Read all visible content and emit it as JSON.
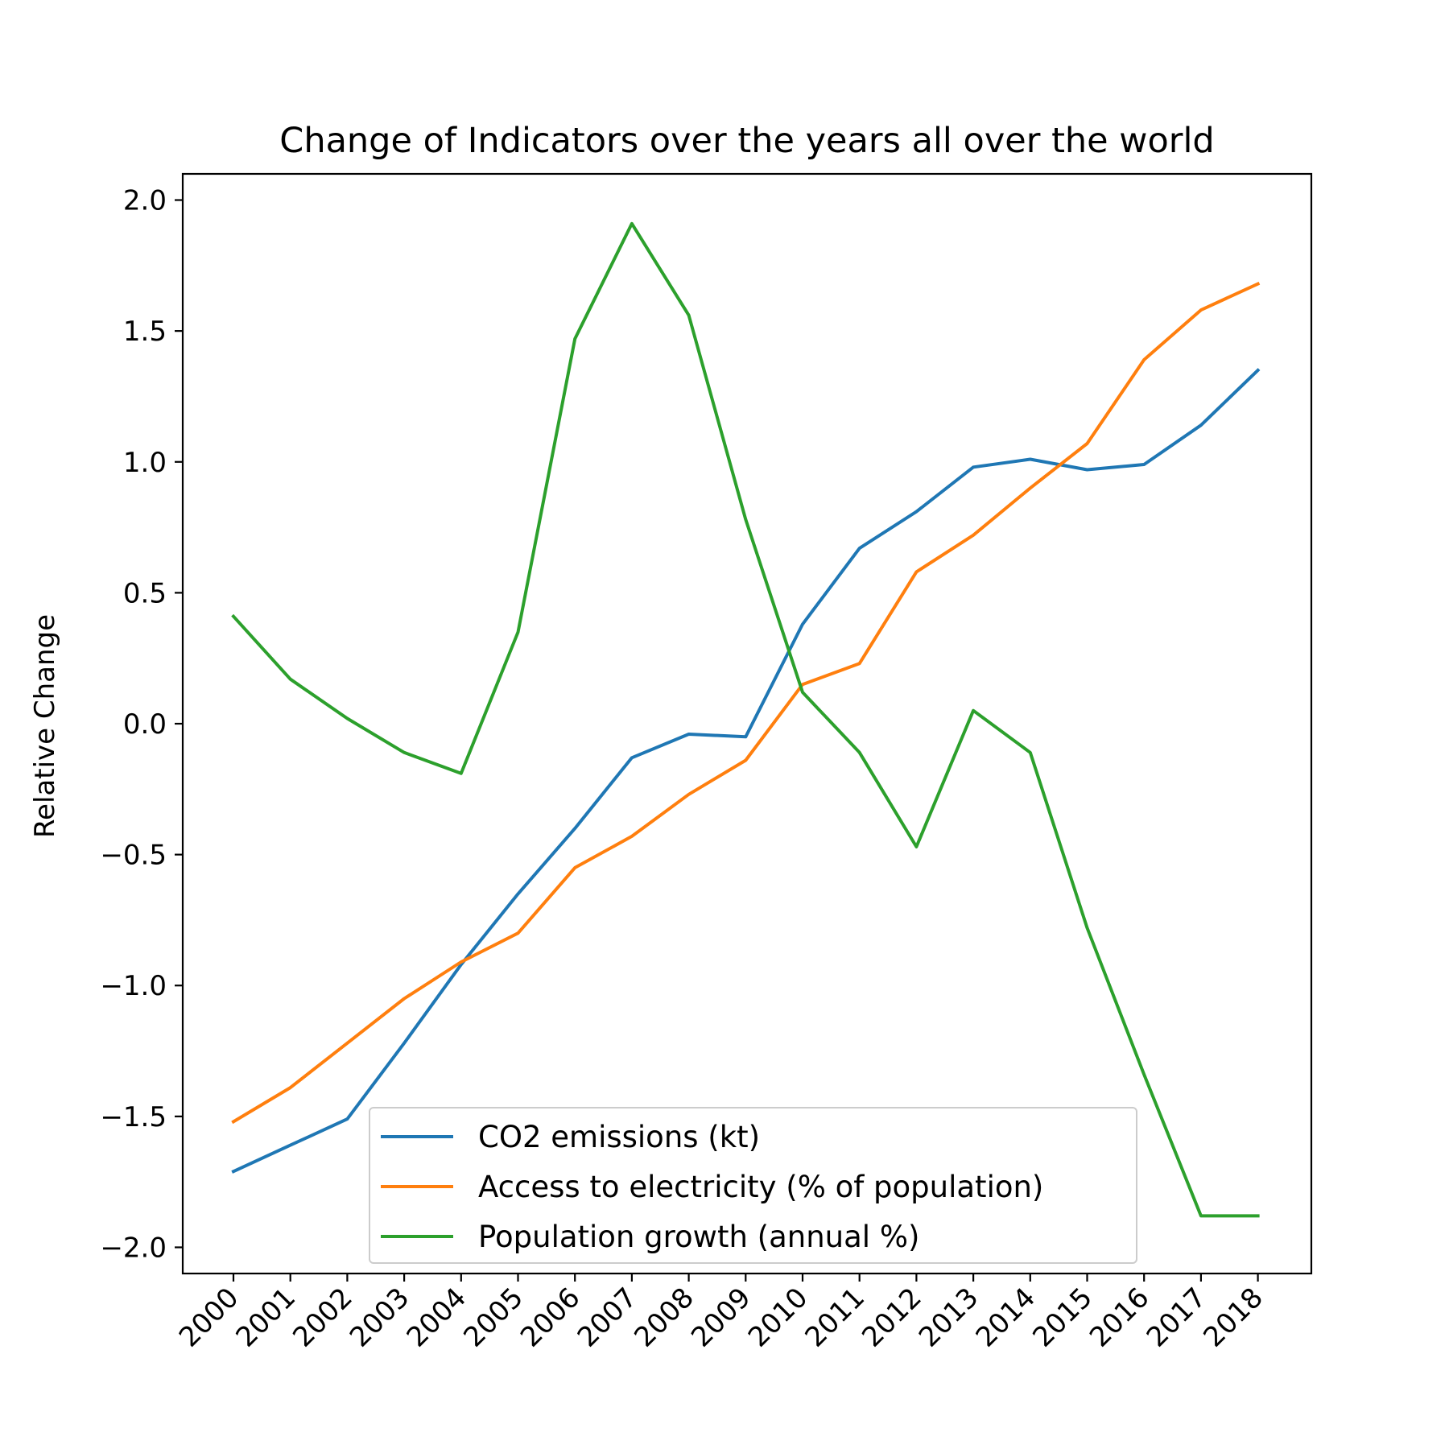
{
  "chart_data": {
    "type": "line",
    "title": "Change of Indicators over the years all over the world",
    "xlabel": "",
    "ylabel": "Relative Change",
    "x": [
      "2000",
      "2001",
      "2002",
      "2003",
      "2004",
      "2005",
      "2006",
      "2007",
      "2008",
      "2009",
      "2010",
      "2011",
      "2012",
      "2013",
      "2014",
      "2015",
      "2016",
      "2017",
      "2018"
    ],
    "ylim": [
      -2.1,
      2.1
    ],
    "yticks": [
      -2.0,
      -1.5,
      -1.0,
      -0.5,
      0.0,
      0.5,
      1.0,
      1.5,
      2.0
    ],
    "ytick_labels": [
      "−2.0",
      "−1.5",
      "−1.0",
      "−0.5",
      "0.0",
      "0.5",
      "1.0",
      "1.5",
      "2.0"
    ],
    "grid": false,
    "legend_position": "lower-center",
    "series": [
      {
        "name": "CO2 emissions (kt)",
        "color": "#1f77b4",
        "values": [
          -1.71,
          -1.61,
          -1.51,
          -1.22,
          -0.92,
          -0.65,
          -0.4,
          -0.13,
          -0.04,
          -0.05,
          0.38,
          0.67,
          0.81,
          0.98,
          1.01,
          0.97,
          0.99,
          1.14,
          1.35
        ]
      },
      {
        "name": "Access to electricity (% of population)",
        "color": "#ff7f0e",
        "values": [
          -1.52,
          -1.39,
          -1.22,
          -1.05,
          -0.91,
          -0.8,
          -0.55,
          -0.43,
          -0.27,
          -0.14,
          0.15,
          0.23,
          0.58,
          0.72,
          0.9,
          1.07,
          1.39,
          1.58,
          1.68
        ]
      },
      {
        "name": "Population growth (annual %)",
        "color": "#2ca02c",
        "values": [
          0.41,
          0.17,
          0.02,
          -0.11,
          -0.19,
          0.35,
          1.47,
          1.91,
          1.56,
          0.78,
          0.12,
          -0.11,
          -0.47,
          0.05,
          -0.11,
          -0.78,
          -1.34,
          -1.88,
          -1.88
        ]
      }
    ]
  }
}
